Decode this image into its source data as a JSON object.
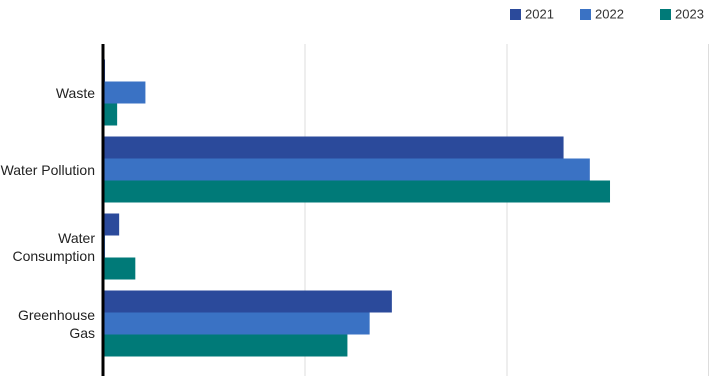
{
  "chart_data": {
    "type": "hbar",
    "categories": [
      "Waste",
      "Water Pollution",
      "Water Consumption",
      "Greenhouse Gas"
    ],
    "series": [
      {
        "name": "2021",
        "color": "#2b4a9b",
        "values": [
          1,
          228,
          8,
          143
        ]
      },
      {
        "name": "2022",
        "color": "#3a72c4",
        "values": [
          21,
          241,
          1,
          132
        ]
      },
      {
        "name": "2023",
        "color": "#007a78",
        "values": [
          7,
          251,
          16,
          121
        ]
      }
    ],
    "xlim": [
      0,
      300
    ],
    "xticks": [
      0,
      100,
      200,
      300
    ],
    "grid": true,
    "legend": "top-right"
  }
}
